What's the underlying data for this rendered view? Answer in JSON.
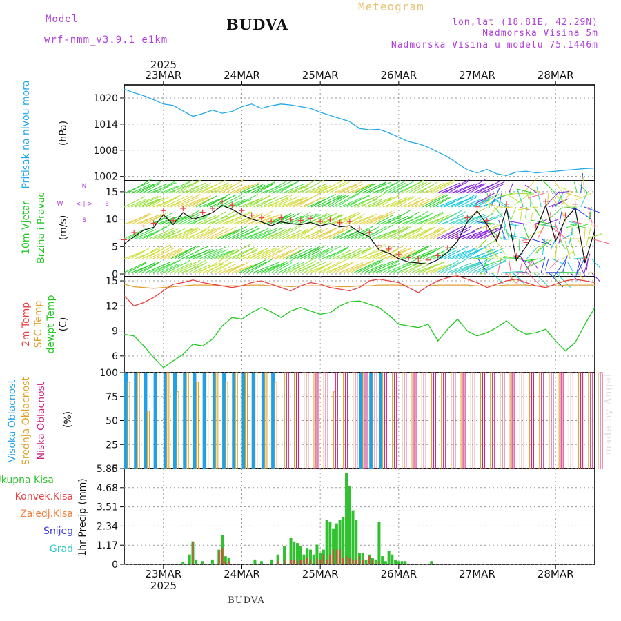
{
  "header": {
    "model_label": "Model",
    "model_name": "wrf-nmm_v3.9.1 e1km",
    "location": "BUDVA",
    "product": "Meteogram",
    "coords": "lon,lat (18.81E, 42.29N)",
    "elevation": "Nadmorska Visina 5m",
    "model_elevation": "Nadmorska Visina u modelu 75.1446m"
  },
  "footer": {
    "location": "BUDVA",
    "credit": "made by Angel"
  },
  "time_axis": {
    "year": "2025",
    "labels": [
      "23MAR",
      "24MAR",
      "25MAR",
      "26MAR",
      "27MAR",
      "28MAR"
    ]
  },
  "colors": {
    "pressure": "#22a8e8",
    "temp_2m": "#e84040",
    "temp_sfc": "#e0a030",
    "dewpoint": "#20c820",
    "cloud_high": "#20a0e8",
    "cloud_mid": "#e0a020",
    "cloud_low": "#d02080",
    "precip_total": "#30c030",
    "precip_conv": "#e84040",
    "ylabel_purple": "#b040d8"
  },
  "panels": {
    "pressure": {
      "ylabel_main": "Pritisak na nivou mora",
      "unit": "(hPa)",
      "ticks": [
        "1020",
        "1014",
        "1008",
        "1002"
      ]
    },
    "wind": {
      "ylabel_main": "10m Vjetar",
      "ylabel_sub": "Brzina i Pravac",
      "unit": "(m/s)",
      "ticks": [
        "15",
        "10",
        "5",
        "0"
      ],
      "compass_n": "N",
      "compass_s": "S",
      "compass_w": "W",
      "compass_e": "E",
      "compass_mid": "<-|->"
    },
    "temperature": {
      "label_2m": "2m Temp",
      "label_sfc": "SFC Temp",
      "label_dew": "dewpt Temp",
      "unit": "(C)",
      "ticks": [
        "15",
        "12",
        "9",
        "6"
      ]
    },
    "clouds": {
      "label_high": "Visoka Oblacnost",
      "label_mid": "Srednja Oblacnost",
      "label_low": "Niska Oblacnost",
      "unit": "(%)",
      "ticks": [
        "100",
        "75",
        "50",
        "25",
        "0"
      ]
    },
    "precip": {
      "label_total": "Ukupna Kisa",
      "label_conv": "Konvek.Kisa",
      "label_freezing": "Zaledj.Kisa",
      "label_snow": "Snijeg",
      "label_hail": "Grad",
      "unit": "1hr Precip (mm)",
      "ticks": [
        "5.85",
        "4.68",
        "3.51",
        "2.34",
        "1.17",
        "0"
      ]
    }
  },
  "chart_data": [
    {
      "type": "line",
      "title": "Pritisak na nivou mora",
      "ylabel": "(hPa)",
      "ylim": [
        1001,
        1023
      ],
      "x_hours": [
        0,
        3,
        6,
        9,
        12,
        15,
        18,
        21,
        24,
        27,
        30,
        33,
        36,
        39,
        42,
        45,
        48,
        51,
        54,
        57,
        60,
        63,
        66,
        69,
        72,
        75,
        78,
        81,
        84,
        87,
        90,
        93,
        96,
        99,
        102,
        105,
        108,
        111,
        114,
        117,
        120,
        123,
        126,
        129,
        132,
        135,
        138,
        141,
        144
      ],
      "series": [
        {
          "name": "Pritisak",
          "values": [
            1022.0,
            1021.2,
            1020.5,
            1019.6,
            1018.6,
            1018.3,
            1017.0,
            1015.8,
            1016.4,
            1017.2,
            1016.5,
            1016.9,
            1018.0,
            1018.6,
            1017.6,
            1018.2,
            1018.6,
            1018.4,
            1018.0,
            1017.6,
            1016.7,
            1016.0,
            1015.3,
            1014.6,
            1013.0,
            1012.7,
            1012.8,
            1012.0,
            1011.0,
            1010.0,
            1009.5,
            1008.7,
            1007.6,
            1006.5,
            1005.0,
            1003.5,
            1002.8,
            1003.6,
            1002.6,
            1002.2,
            1003.0,
            1003.2,
            1002.8,
            1003.0,
            1003.2,
            1003.4,
            1003.6,
            1003.8,
            1003.9
          ]
        }
      ]
    },
    {
      "type": "line",
      "title": "10m Vjetar",
      "ylabel": "(m/s)",
      "ylim": [
        -0.5,
        17
      ],
      "x_hours": [
        0,
        3,
        6,
        9,
        12,
        15,
        18,
        21,
        24,
        27,
        30,
        33,
        36,
        39,
        42,
        45,
        48,
        51,
        54,
        57,
        60,
        63,
        66,
        69,
        72,
        75,
        78,
        81,
        84,
        87,
        90,
        93,
        96,
        99,
        102,
        105,
        108,
        111,
        114,
        117,
        120,
        123,
        126,
        129,
        132,
        135,
        138,
        141,
        144
      ],
      "series": [
        {
          "name": "Brzina",
          "values": [
            5.5,
            6.8,
            8.0,
            8.5,
            10.8,
            9.0,
            11.2,
            10.0,
            10.5,
            11.2,
            12.5,
            11.8,
            10.8,
            10.0,
            9.5,
            8.8,
            9.5,
            9.2,
            9.0,
            9.4,
            8.8,
            9.2,
            8.6,
            8.8,
            7.6,
            6.8,
            4.4,
            3.8,
            2.8,
            2.2,
            2.0,
            1.8,
            2.6,
            4.0,
            6.0,
            9.5,
            11.5,
            9.0,
            6.0,
            12.0,
            2.5,
            5.0,
            8.0,
            12.5,
            6.0,
            10.0,
            12.0,
            2.0,
            8.0
          ]
        }
      ]
    },
    {
      "type": "line",
      "title": "Temperatura",
      "ylabel": "(C)",
      "ylim": [
        4,
        15.5
      ],
      "x_hours": [
        0,
        3,
        6,
        9,
        12,
        15,
        18,
        21,
        24,
        27,
        30,
        33,
        36,
        39,
        42,
        45,
        48,
        51,
        54,
        57,
        60,
        63,
        66,
        69,
        72,
        75,
        78,
        81,
        84,
        87,
        90,
        93,
        96,
        99,
        102,
        105,
        108,
        111,
        114,
        117,
        120,
        123,
        126,
        129,
        132,
        135,
        138,
        141,
        144
      ],
      "series": [
        {
          "name": "2m Temp",
          "values": [
            13.2,
            12.0,
            12.4,
            13.0,
            13.8,
            14.6,
            14.8,
            15.1,
            14.8,
            14.6,
            14.4,
            14.2,
            14.4,
            14.8,
            15.0,
            14.6,
            14.2,
            13.8,
            14.4,
            14.8,
            14.6,
            14.2,
            14.0,
            13.8,
            14.2,
            15.0,
            15.2,
            15.0,
            14.8,
            14.2,
            13.6,
            14.4,
            15.0,
            15.4,
            15.6,
            15.2,
            14.8,
            14.2,
            14.6,
            15.0,
            15.2,
            14.8,
            14.4,
            14.2,
            14.6,
            15.0,
            15.2,
            15.0,
            14.8
          ]
        },
        {
          "name": "SFC Temp",
          "values": [
            14.6,
            14.3,
            14.2,
            14.1,
            14.2,
            14.3,
            14.4,
            14.5,
            14.5,
            14.5,
            14.4,
            14.4,
            14.4,
            14.5,
            14.5,
            14.4,
            14.4,
            14.3,
            14.4,
            14.4,
            14.4,
            14.4,
            14.3,
            14.3,
            14.4,
            14.4,
            14.5,
            14.5,
            14.5,
            14.4,
            14.4,
            14.4,
            14.5,
            14.5,
            14.5,
            14.5,
            14.4,
            14.4,
            14.4,
            14.5,
            14.5,
            14.5,
            14.4,
            14.4,
            14.4,
            14.5,
            14.5,
            14.5,
            14.5
          ]
        },
        {
          "name": "dewpt Temp",
          "values": [
            8.6,
            8.4,
            7.2,
            5.8,
            4.6,
            5.4,
            6.2,
            7.4,
            7.2,
            8.0,
            9.6,
            10.6,
            10.4,
            11.2,
            11.8,
            11.3,
            10.6,
            11.4,
            11.8,
            11.4,
            11.0,
            11.2,
            12.0,
            12.5,
            12.6,
            12.2,
            11.8,
            10.9,
            9.8,
            9.6,
            9.4,
            9.8,
            7.8,
            9.2,
            10.4,
            9.0,
            8.4,
            8.8,
            9.4,
            10.2,
            9.2,
            8.6,
            8.8,
            9.2,
            7.8,
            6.6,
            7.6,
            9.8,
            11.8
          ]
        }
      ]
    },
    {
      "type": "bar",
      "title": "Oblacnost",
      "ylabel": "(%)",
      "ylim": [
        0,
        100
      ],
      "x_hours": [
        0,
        3,
        6,
        9,
        12,
        15,
        18,
        21,
        24,
        27,
        30,
        33,
        36,
        39,
        42,
        45,
        48,
        51,
        54,
        57,
        60,
        63,
        66,
        69,
        72,
        75,
        78,
        81,
        84,
        87,
        90,
        93,
        96,
        99,
        102,
        105,
        108,
        111,
        114,
        117,
        120,
        123,
        126,
        129,
        132,
        135,
        138,
        141,
        144
      ],
      "series": [
        {
          "name": "Visoka Oblacnost",
          "values": [
            100,
            100,
            100,
            100,
            100,
            100,
            100,
            100,
            100,
            100,
            100,
            100,
            100,
            100,
            100,
            100,
            0,
            0,
            0,
            0,
            0,
            0,
            0,
            0,
            100,
            100,
            100,
            0,
            0,
            0,
            0,
            0,
            0,
            0,
            0,
            0,
            0,
            0,
            0,
            0,
            0,
            0,
            0,
            0,
            0,
            0,
            0,
            0,
            0
          ]
        },
        {
          "name": "Srednja Oblacnost",
          "values": [
            90,
            100,
            60,
            100,
            100,
            80,
            100,
            90,
            100,
            100,
            90,
            100,
            100,
            100,
            100,
            90,
            100,
            100,
            100,
            100,
            100,
            80,
            100,
            100,
            100,
            100,
            100,
            100,
            100,
            100,
            100,
            100,
            100,
            100,
            100,
            100,
            100,
            100,
            100,
            100,
            100,
            100,
            100,
            100,
            100,
            100,
            100,
            100,
            100
          ]
        },
        {
          "name": "Niska Oblacnost",
          "values": [
            0,
            0,
            0,
            0,
            0,
            0,
            0,
            0,
            0,
            0,
            0,
            0,
            0,
            0,
            0,
            0,
            100,
            100,
            100,
            100,
            100,
            100,
            100,
            100,
            100,
            100,
            100,
            100,
            100,
            100,
            100,
            100,
            100,
            100,
            100,
            100,
            100,
            100,
            100,
            100,
            100,
            100,
            100,
            100,
            100,
            100,
            100,
            100,
            100
          ]
        }
      ]
    },
    {
      "type": "bar",
      "title": "1hr Precip",
      "ylabel": "(mm)",
      "ylim": [
        0,
        5.85
      ],
      "x_hours": [
        18,
        20,
        21,
        22,
        24,
        27,
        29,
        30,
        31,
        32,
        40,
        42,
        45,
        47,
        49,
        51,
        52,
        53,
        54,
        55,
        56,
        57,
        58,
        59,
        60,
        61,
        62,
        63,
        64,
        65,
        66,
        67,
        68,
        69,
        70,
        71,
        72,
        73,
        74,
        75,
        76,
        77,
        78,
        79,
        80,
        81,
        82,
        83,
        84,
        85,
        86,
        94
      ],
      "series": [
        {
          "name": "Ukupna Kisa",
          "values": [
            0.15,
            0.6,
            1.4,
            0.3,
            0.2,
            0.3,
            0.9,
            1.8,
            0.5,
            0.4,
            0.3,
            0.2,
            0.3,
            0.6,
            1.1,
            1.6,
            1.4,
            1.3,
            1.1,
            0.6,
            1.0,
            0.9,
            0.6,
            1.2,
            0.7,
            0.9,
            2.7,
            2.6,
            2.2,
            2.5,
            2.7,
            2.9,
            5.6,
            4.8,
            3.3,
            2.7,
            0.7,
            0.7,
            0.3,
            0.6,
            0.4,
            0.3,
            2.6,
            0.5,
            0.2,
            0.8,
            0.6,
            0.3,
            0.2,
            0.2,
            0.2,
            0.2
          ]
        },
        {
          "name": "Konvek.Kisa",
          "values": [
            0.0,
            0.0,
            1.4,
            0.0,
            0.0,
            0.0,
            0.8,
            1.0,
            0.2,
            0.2,
            0.0,
            0.0,
            0.0,
            0.2,
            0.3,
            0.3,
            0.3,
            0.2,
            0.3,
            0.3,
            0.4,
            0.3,
            0.0,
            0.4,
            0.3,
            0.6,
            0.3,
            0.6,
            0.9,
            0.9,
            0.9,
            0.4,
            0.5,
            0.4,
            0.3,
            0.3,
            0.5,
            0.3,
            0.0,
            0.5,
            0.3,
            0.0,
            0.2,
            0.0,
            0.0,
            0.0,
            0.0,
            0.0,
            0.0,
            0.0,
            0.0,
            0.0
          ]
        }
      ]
    }
  ]
}
